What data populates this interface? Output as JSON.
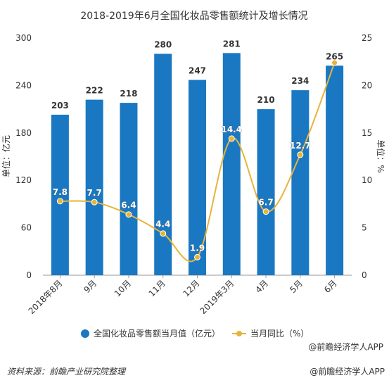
{
  "chart_data": {
    "type": "bar",
    "title": "2018-2019年6月全国化妆品零售额统计及增长情况",
    "categories": [
      "2018年8月",
      "9月",
      "10月",
      "11月",
      "12月",
      "2019年3月",
      "4月",
      "5月",
      "6月"
    ],
    "series": [
      {
        "name": "全国化妆品零售额当月值（亿元）",
        "type": "bar",
        "axis": "left",
        "color": "#1a78c2",
        "values": [
          203,
          222,
          218,
          280,
          247,
          281,
          210,
          234,
          265
        ]
      },
      {
        "name": "当月同比（%）",
        "type": "line",
        "axis": "right",
        "color": "#e6b43c",
        "values": [
          7.8,
          7.7,
          6.4,
          4.4,
          1.9,
          14.4,
          6.7,
          12.7,
          22.4
        ]
      }
    ],
    "ylabel_left": "单位：亿元",
    "ylabel_right": "单位：%",
    "ylim_left": [
      0,
      300
    ],
    "yticks_left": [
      "0",
      "60",
      "120",
      "180",
      "240",
      "300"
    ],
    "ylim_right": [
      0,
      25
    ],
    "yticks_right": [
      "0",
      "5",
      "10",
      "15",
      "20",
      "25"
    ],
    "grid": false,
    "legend_position": "bottom"
  },
  "legend_source_note": "@前瞻经济学人APP",
  "footer": {
    "source": "资料来源：前瞻产业研究院整理",
    "brand": "@前瞻经济学人APP"
  }
}
